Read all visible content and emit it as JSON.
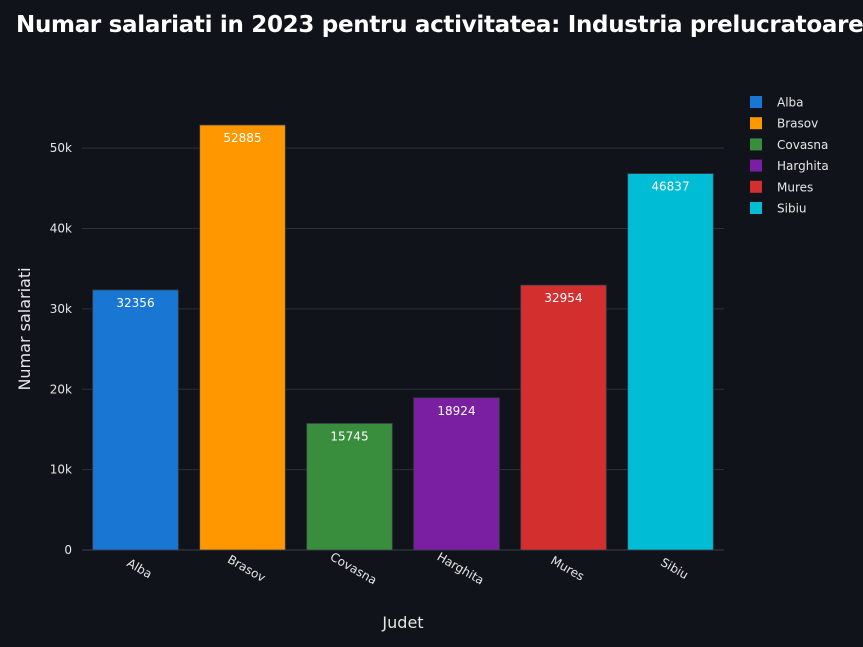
{
  "chart_data": {
    "type": "bar",
    "title": "Numar salariati in 2023 pentru activitatea: Industria prelucratoare",
    "xlabel": "Judet",
    "ylabel": "Numar salariati",
    "categories": [
      "Alba",
      "Brasov",
      "Covasna",
      "Harghita",
      "Mures",
      "Sibiu"
    ],
    "values": [
      32356,
      52885,
      15745,
      18924,
      32954,
      46837
    ],
    "value_labels": [
      "32356",
      "52885",
      "15745",
      "18924",
      "32954",
      "46837"
    ],
    "colors": [
      "#1976d2",
      "#ff9800",
      "#388e3c",
      "#7b1fa2",
      "#d32f2f",
      "#00bcd4"
    ],
    "ylim": [
      0,
      55000
    ],
    "yticks": [
      0,
      10000,
      20000,
      30000,
      40000,
      50000
    ],
    "ytick_labels": [
      "0",
      "10k",
      "20k",
      "30k",
      "40k",
      "50k"
    ],
    "legend": [
      "Alba",
      "Brasov",
      "Covasna",
      "Harghita",
      "Mures",
      "Sibiu"
    ],
    "legend_position": "top-right",
    "grid": true
  }
}
